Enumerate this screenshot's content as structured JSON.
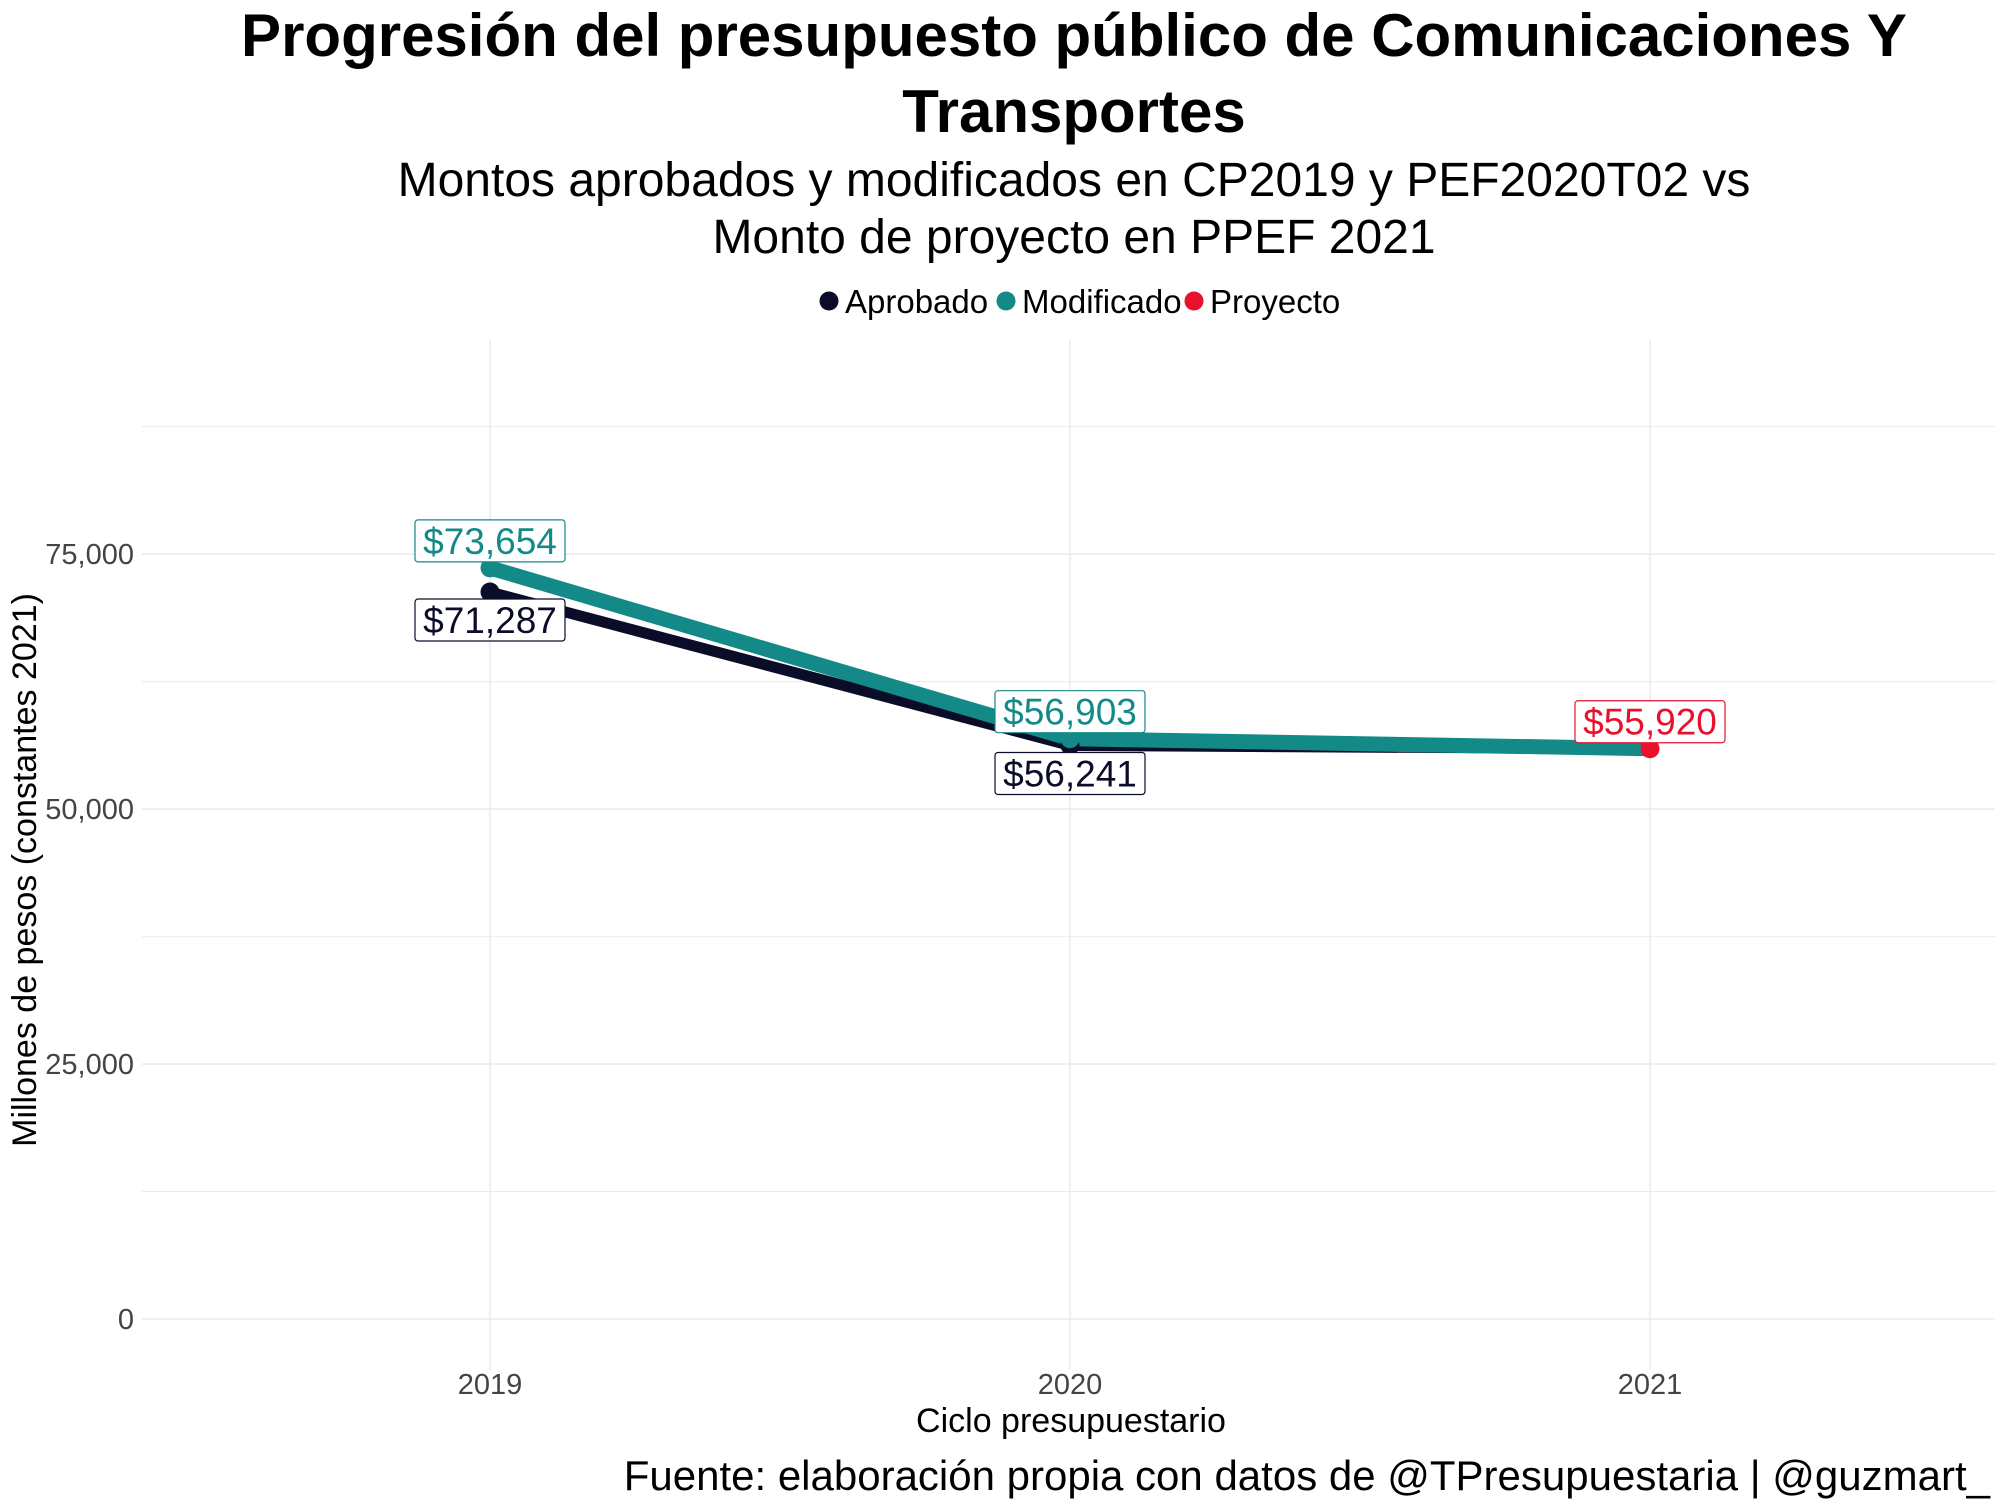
{
  "chart_data": {
    "type": "line",
    "title": "Progresión del presupuesto público de Comunicaciones Y",
    "title_line2": "Transportes",
    "subtitle": "Montos aprobados y modificados en CP2019 y PEF2020T02 vs",
    "subtitle_line2": "Monto de proyecto en PPEF 2021",
    "xlabel": "Ciclo presupuestario",
    "ylabel": "Millones de pesos (constantes 2021)",
    "caption": "Fuente: elaboración propia con datos de @TPresupuestaria | @guzmart_",
    "x_categories": [
      "2019",
      "2020",
      "2021"
    ],
    "y_ticks": [
      0,
      25000,
      50000,
      75000
    ],
    "y_tick_labels": [
      "0",
      "25,000",
      "50,000",
      "75,000"
    ],
    "ylim": [
      -5000,
      96000
    ],
    "grid": true,
    "legend_position": "top",
    "series": [
      {
        "name": "Aprobado",
        "color": "#0b0d28",
        "points": [
          {
            "x": "2019",
            "y": 71287,
            "label": "$71,287"
          },
          {
            "x": "2020",
            "y": 56241,
            "label": "$56,241"
          },
          {
            "x": "2021",
            "y": 55920
          }
        ]
      },
      {
        "name": "Modificado",
        "color": "#138a87",
        "points": [
          {
            "x": "2019",
            "y": 73654,
            "label": "$73,654"
          },
          {
            "x": "2020",
            "y": 56903,
            "label": "$56,903"
          },
          {
            "x": "2021",
            "y": 55920
          }
        ]
      },
      {
        "name": "Proyecto",
        "color": "#e8102d",
        "points": [
          {
            "x": "2021",
            "y": 55920,
            "label": "$55,920"
          }
        ]
      }
    ]
  }
}
